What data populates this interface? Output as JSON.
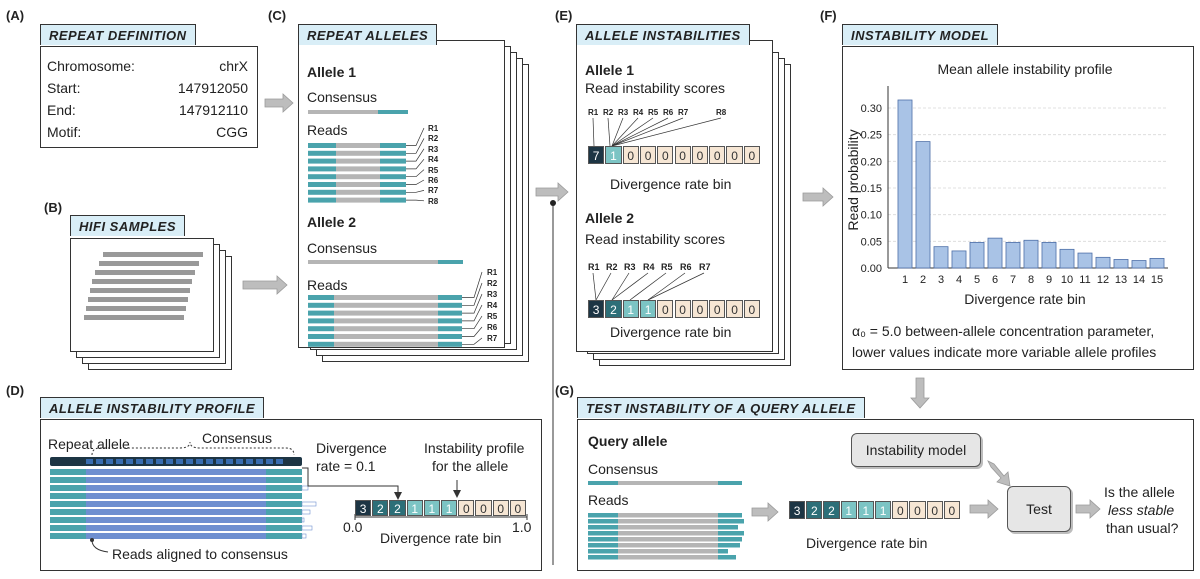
{
  "panels": {
    "a": {
      "label": "(A)",
      "title": "REPEAT DEFINITION",
      "rows": [
        {
          "key": "Chromosome:",
          "value": "chrX"
        },
        {
          "key": "Start:",
          "value": "147912050"
        },
        {
          "key": "End:",
          "value": "147912110"
        },
        {
          "key": "Motif:",
          "value": "CGG"
        }
      ]
    },
    "b": {
      "label": "(B)",
      "title": "HIFI SAMPLES"
    },
    "c": {
      "label": "(C)",
      "title": "REPEAT ALLELES",
      "allele1": "Allele 1",
      "allele2": "Allele 2",
      "consensus": "Consensus",
      "reads": "Reads",
      "reads1": [
        "R1",
        "R2",
        "R3",
        "R4",
        "R5",
        "R6",
        "R7",
        "R8"
      ],
      "reads2": [
        "R1",
        "R2",
        "R3",
        "R4",
        "R5",
        "R6",
        "R7"
      ]
    },
    "d": {
      "label": "(D)",
      "title": "ALLELE INSTABILITY PROFILE",
      "repeat_allele": "Repeat allele",
      "consensus": "Consensus",
      "divergence_rate": "Divergence",
      "divergence_rate2": "rate = 0.1",
      "profile_line1": "Instability profile",
      "profile_line2": "for the allele",
      "axis_min": "0.0",
      "axis_max": "1.0",
      "axis_label": "Divergence rate bin",
      "reads_aligned": "Reads aligned to consensus",
      "cells": [
        "3",
        "2",
        "2",
        "1",
        "1",
        "1",
        "0",
        "0",
        "0",
        "0"
      ]
    },
    "e": {
      "label": "(E)",
      "title": "ALLELE INSTABILITIES",
      "allele1": "Allele 1",
      "allele2": "Allele 2",
      "scores": "Read instability scores",
      "axis_label": "Divergence rate bin",
      "reads1": [
        "R1",
        "R2",
        "R3",
        "R4",
        "R5",
        "R6",
        "R7",
        "R8"
      ],
      "reads2": [
        "R1",
        "R2",
        "R3",
        "R4",
        "R5",
        "R6",
        "R7"
      ],
      "cells1": [
        "7",
        "1",
        "0",
        "0",
        "0",
        "0",
        "0",
        "0",
        "0",
        "0"
      ],
      "cells2": [
        "3",
        "2",
        "1",
        "1",
        "0",
        "0",
        "0",
        "0",
        "0",
        "0"
      ]
    },
    "f": {
      "label": "(F)",
      "title": "INSTABILITY MODEL",
      "caption1": "α₀ = 5.0 between-allele concentration parameter,",
      "caption2": "lower values indicate more variable allele profiles"
    },
    "g": {
      "label": "(G)",
      "title": "TEST INSTABILITY OF A QUERY ALLELE",
      "query": "Query allele",
      "consensus": "Consensus",
      "reads": "Reads",
      "axis_label": "Divergence rate bin",
      "model": "Instability model",
      "test": "Test",
      "question1": "Is the allele",
      "question2a": "less stable",
      "question3": "than usual?",
      "cells": [
        "3",
        "2",
        "2",
        "1",
        "1",
        "1",
        "0",
        "0",
        "0",
        "0"
      ]
    }
  },
  "chart_data": {
    "type": "bar",
    "title": "Mean allele instability profile",
    "xlabel": "Divergence rate bin",
    "ylabel": "Read probability",
    "categories": [
      "1",
      "2",
      "3",
      "4",
      "5",
      "6",
      "7",
      "8",
      "9",
      "10",
      "11",
      "12",
      "13",
      "14",
      "15"
    ],
    "values": [
      0.315,
      0.237,
      0.04,
      0.032,
      0.048,
      0.056,
      0.048,
      0.052,
      0.048,
      0.035,
      0.028,
      0.02,
      0.016,
      0.014,
      0.018
    ],
    "ylim": [
      0,
      0.33
    ],
    "yticks": [
      "0.00",
      "0.05",
      "0.10",
      "0.15",
      "0.20",
      "0.25",
      "0.30"
    ],
    "grid": true
  },
  "colors": {
    "dark": "#1d3544",
    "mid": "#2d6f78",
    "light": "#7cc4c4",
    "zero": "#f6e6d4",
    "teal": "#4aa3ac",
    "gray": "#b5b5b5",
    "blue": "#6e8fd0",
    "bar": "#a9c3e6"
  }
}
